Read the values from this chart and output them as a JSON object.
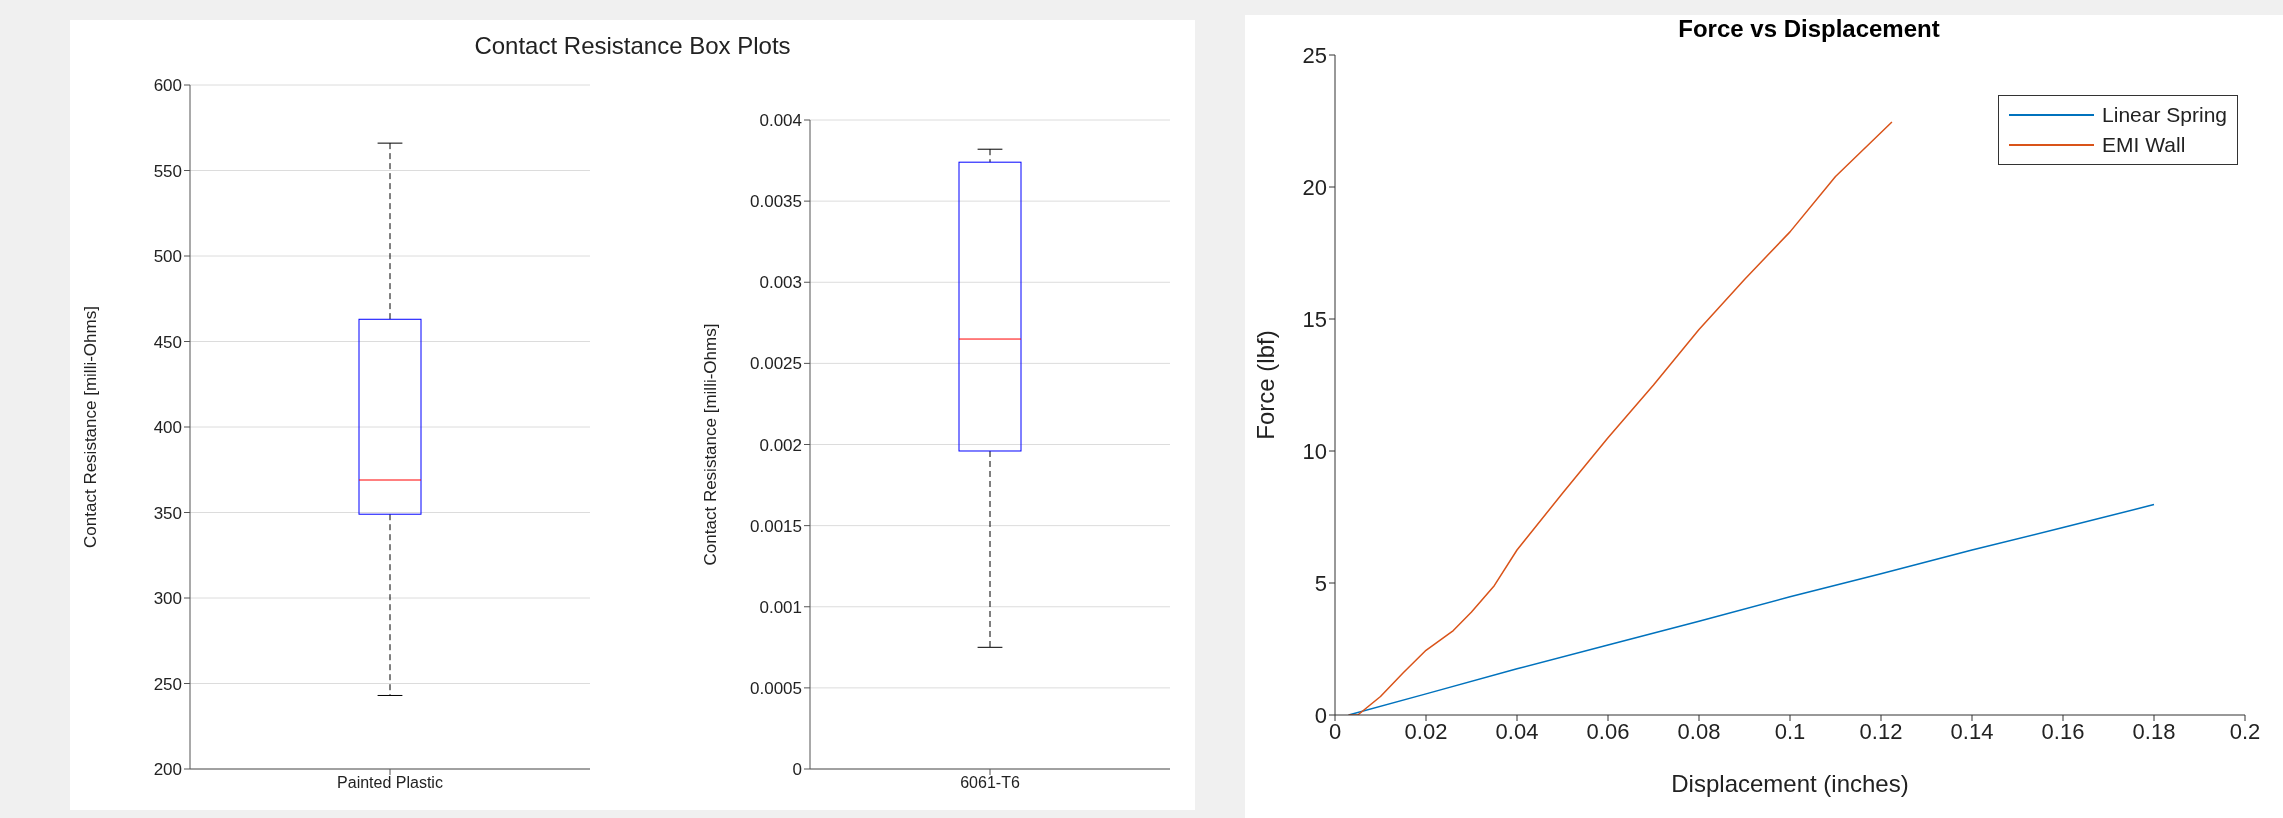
{
  "chart_data": [
    {
      "type": "box",
      "title": "Contact Resistance Box Plots",
      "ylabel": "Contact Resistance [milli-Ohms]",
      "categories": [
        "Painted Plastic"
      ],
      "ylim": [
        200,
        600
      ],
      "yticks": [
        200,
        250,
        300,
        350,
        400,
        450,
        500,
        550,
        600
      ],
      "grid": true,
      "series": [
        {
          "color": "#0000ff",
          "boxes": [
            {
              "low": 243,
              "q1": 349,
              "median": 369,
              "q3": 463,
              "high": 566
            }
          ]
        }
      ]
    },
    {
      "type": "box",
      "ylabel": "Contact Resistance [milli-Ohms]",
      "categories": [
        "6061-T6"
      ],
      "ylim": [
        0,
        0.004
      ],
      "yticks": [
        0,
        0.0005,
        0.001,
        0.0015,
        0.002,
        0.0025,
        0.003,
        0.0035,
        0.004
      ],
      "grid": true,
      "series": [
        {
          "color": "#0000ff",
          "boxes": [
            {
              "low": 0.00075,
              "q1": 0.00196,
              "median": 0.00265,
              "q3": 0.00374,
              "high": 0.00382
            }
          ]
        }
      ]
    },
    {
      "type": "line",
      "title": "Force vs Displacement",
      "xlabel": "Displacement (inches)",
      "ylabel": "Force (lbf)",
      "xlim": [
        0,
        0.2
      ],
      "ylim": [
        0,
        25
      ],
      "xticks": [
        0,
        0.02,
        0.04,
        0.06,
        0.08,
        0.1,
        0.12,
        0.14,
        0.16,
        0.18,
        0.2
      ],
      "yticks": [
        0,
        5,
        10,
        15,
        20,
        25
      ],
      "grid": false,
      "legend": "top right",
      "marker": "none",
      "line_style": "solid",
      "series": [
        {
          "name": "Linear Spring",
          "color": "#0072bd",
          "x": [
            0.003,
            0.02,
            0.04,
            0.06,
            0.08,
            0.1,
            0.12,
            0.14,
            0.16,
            0.18
          ],
          "values": [
            0,
            0.8,
            1.75,
            2.65,
            3.55,
            4.48,
            5.35,
            6.25,
            7.1,
            7.97
          ]
        },
        {
          "name": "EMI Wall",
          "color": "#d95319",
          "x": [
            0.003,
            0.005,
            0.01,
            0.015,
            0.02,
            0.026,
            0.03,
            0.035,
            0.04,
            0.05,
            0.06,
            0.07,
            0.08,
            0.09,
            0.1,
            0.11,
            0.1224
          ],
          "values": [
            0,
            0,
            0.7,
            1.6,
            2.45,
            3.2,
            3.9,
            4.9,
            6.25,
            8.4,
            10.5,
            12.5,
            14.6,
            16.5,
            18.3,
            20.4,
            22.46
          ]
        }
      ]
    }
  ]
}
